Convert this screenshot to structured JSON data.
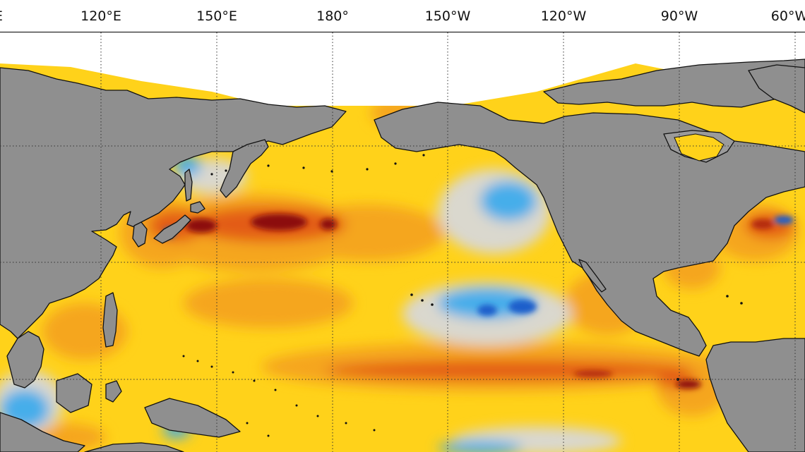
{
  "longitude_labels": [
    "120°E",
    "150°E",
    "180°",
    "150°W",
    "120°W",
    "90°W",
    "60°W"
  ],
  "edge_label_left": "E",
  "colors": {
    "land": "#8f8f8f",
    "ocean_base": "#ffd21a",
    "anomaly_warm": "#f4a11c",
    "anomaly_hot": "#e0501a",
    "anomaly_extreme": "#8c0f08",
    "anomaly_neutral": "#d9d9d9",
    "anomaly_cool": "#37a9ee",
    "anomaly_cold": "#1f5ecb",
    "coastline": "#111111",
    "gridline": "#333333",
    "sea_ice_area": "#ffffff"
  }
}
